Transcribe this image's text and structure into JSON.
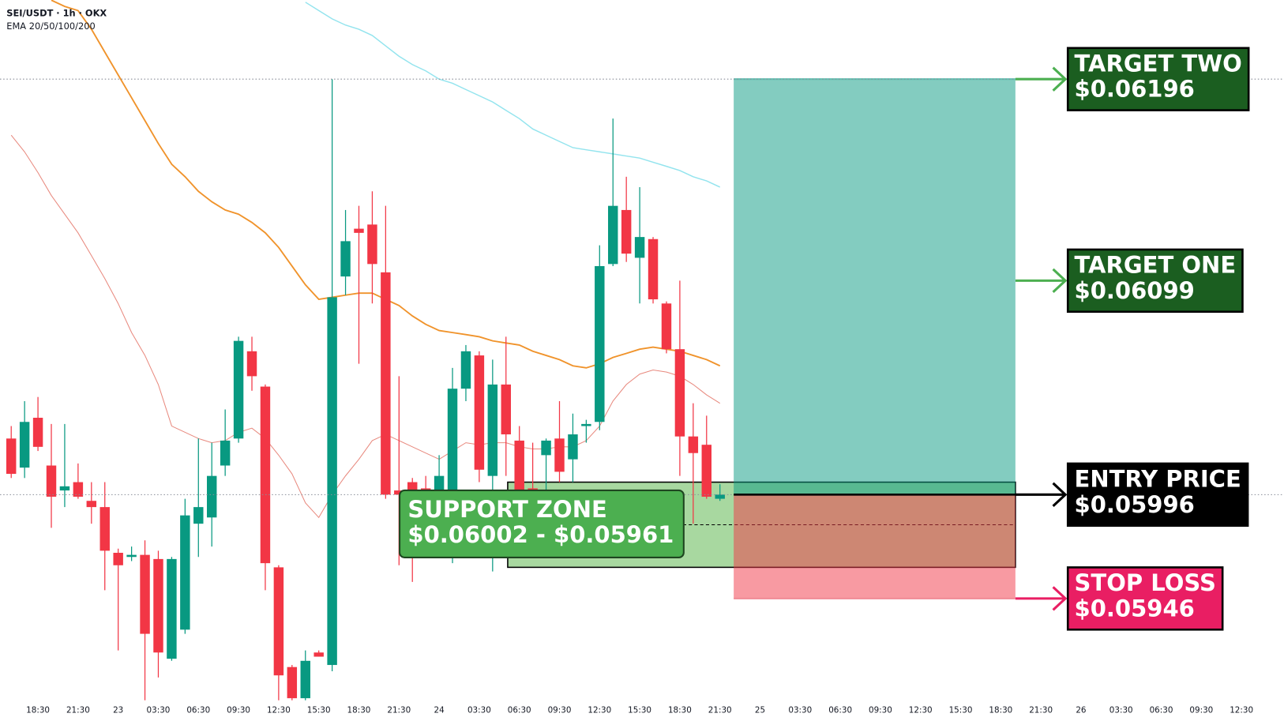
{
  "chart_data": {
    "type": "candlestick",
    "title": "SEI/USDT · 1h · OKX",
    "subtitle": "EMA 20/50/100/200",
    "categories": [
      null,
      null,
      "18:30",
      null,
      null,
      "21:30",
      null,
      null,
      "23",
      null,
      null,
      "03:30",
      null,
      null,
      "06:30",
      null,
      null,
      "09:30",
      null,
      null,
      "12:30",
      null,
      null,
      "15:30",
      null,
      null,
      "18:30",
      null,
      null,
      "21:30",
      null,
      null,
      "24",
      null,
      null,
      "03:30",
      null,
      null,
      "06:30",
      null,
      null,
      "09:30",
      null,
      null,
      "12:30",
      null,
      null,
      "15:30",
      null,
      null,
      "18:30",
      null,
      null,
      "21:30",
      null,
      null,
      "25",
      null,
      null,
      "03:30",
      null,
      null,
      "06:30",
      null,
      null,
      "09:30",
      null,
      null,
      "12:30",
      null,
      null,
      "15:30",
      null,
      null,
      "18:30",
      null,
      null,
      "21:30",
      null,
      null,
      "26",
      null,
      null,
      "03:30",
      null,
      null,
      "06:30",
      null,
      null,
      "09:30",
      null,
      null,
      "12:30"
    ],
    "open": [
      0.06023,
      0.06009,
      0.06033,
      0.0601,
      0.05998,
      0.06002,
      0.05993,
      0.0599,
      0.05968,
      0.05966,
      0.05967,
      0.05965,
      0.05917,
      0.05931,
      0.05982,
      0.05985,
      0.0601,
      0.06023,
      0.06065,
      0.06048,
      0.05961,
      0.05913,
      0.05898,
      0.0592,
      0.05914,
      0.06101,
      0.06124,
      0.06126,
      0.06103,
      0.05998,
      0.06002,
      0.05999,
      0.05998,
      0.05998,
      0.06047,
      0.06063,
      0.06005,
      0.06049,
      0.06022,
      0.05999,
      0.06015,
      0.06023,
      0.06013,
      0.06029,
      0.06031,
      0.06107,
      0.06133,
      0.0611,
      0.06119,
      0.06088,
      0.06066,
      0.06024,
      0.0602,
      0.05994,
      null,
      null,
      null,
      null,
      null,
      null,
      null,
      null,
      null,
      null,
      null,
      null,
      null,
      null,
      null,
      null,
      null,
      null,
      null,
      null,
      null,
      null,
      null,
      null,
      null,
      null,
      null,
      null,
      null,
      null,
      null,
      null,
      null,
      null,
      null,
      null,
      null,
      null,
      null
    ],
    "high": [
      0.06029,
      0.06041,
      0.06043,
      0.0603,
      0.0603,
      0.06011,
      0.06002,
      0.06002,
      0.0597,
      0.05971,
      0.05974,
      0.05969,
      0.05966,
      0.05994,
      0.06023,
      0.06021,
      0.06037,
      0.06072,
      0.06072,
      0.06049,
      0.05962,
      0.05914,
      0.05921,
      0.05921,
      0.06196,
      0.06133,
      0.06135,
      0.06142,
      0.06135,
      0.06053,
      0.06004,
      0.06005,
      0.06015,
      0.06057,
      0.06068,
      0.06065,
      0.06061,
      0.06072,
      0.06029,
      0.06021,
      0.06023,
      0.06041,
      0.06035,
      0.06032,
      0.06116,
      0.06177,
      0.06149,
      0.06144,
      0.0612,
      0.06089,
      0.06099,
      0.0604,
      0.06034,
      0.06001,
      null,
      null,
      null,
      null,
      null,
      null,
      null,
      null,
      null,
      null,
      null,
      null,
      null,
      null,
      null,
      null,
      null,
      null,
      null,
      null,
      null,
      null,
      null,
      null,
      null,
      null,
      null,
      null,
      null,
      null,
      null,
      null,
      null,
      null,
      null,
      null,
      null,
      null,
      null
    ],
    "low": [
      0.06004,
      0.06004,
      0.06017,
      0.0598,
      0.0599,
      0.05994,
      0.05982,
      0.0595,
      0.05921,
      0.05964,
      0.05897,
      0.05908,
      0.05916,
      0.05929,
      0.05966,
      0.05971,
      0.06005,
      0.06021,
      0.06046,
      0.0595,
      0.05897,
      0.05897,
      0.05897,
      0.05918,
      0.05911,
      0.06092,
      0.06059,
      0.06088,
      0.05994,
      0.05962,
      0.05954,
      0.05994,
      0.05988,
      0.05963,
      0.06041,
      0.06002,
      0.05959,
      0.06005,
      0.0599,
      0.05996,
      0.05998,
      0.06002,
      0.06002,
      0.06021,
      0.06027,
      0.06106,
      0.06108,
      0.06088,
      0.06088,
      0.06064,
      0.06005,
      0.05982,
      0.05994,
      0.05993,
      null,
      null,
      null,
      null,
      null,
      null,
      null,
      null,
      null,
      null,
      null,
      null,
      null,
      null,
      null,
      null,
      null,
      null,
      null,
      null,
      null,
      null,
      null,
      null,
      null,
      null,
      null,
      null,
      null,
      null,
      null,
      null,
      null,
      null,
      null,
      null,
      null,
      null,
      null
    ],
    "close": [
      0.06006,
      0.06031,
      0.06019,
      0.05995,
      0.06,
      0.05995,
      0.0599,
      0.05969,
      0.05962,
      0.05967,
      0.05929,
      0.0592,
      0.05965,
      0.05986,
      0.0599,
      0.06005,
      0.06022,
      0.0607,
      0.06053,
      0.05963,
      0.05909,
      0.05898,
      0.05916,
      0.05918,
      0.06091,
      0.06118,
      0.06122,
      0.06107,
      0.05996,
      0.05996,
      0.05998,
      0.05997,
      0.06005,
      0.06047,
      0.06065,
      0.06008,
      0.06049,
      0.06025,
      0.05998,
      0.05998,
      0.06022,
      0.06007,
      0.06025,
      0.0603,
      0.06106,
      0.06135,
      0.06112,
      0.0612,
      0.0609,
      0.06066,
      0.06024,
      0.06016,
      0.05995,
      0.05996,
      null,
      null,
      null,
      null,
      null,
      null,
      null,
      null,
      null,
      null,
      null,
      null,
      null,
      null,
      null,
      null,
      null,
      null,
      null,
      null,
      null,
      null,
      null,
      null,
      null,
      null,
      null,
      null,
      null,
      null,
      null,
      null,
      null,
      null,
      null,
      null,
      null,
      null,
      null
    ],
    "up_color": "#089981",
    "down_color": "#f23645",
    "ylim": [
      0.05895,
      0.06234
    ],
    "lines": [
      {
        "color": "#f0932b",
        "width": 1.8,
        "values": [
          null,
          null,
          null,
          0.06234,
          0.06231,
          0.06229,
          0.0622,
          0.06209,
          0.06198,
          0.06187,
          0.06176,
          0.06165,
          0.06155,
          0.06149,
          0.06142,
          0.06137,
          0.06133,
          0.06131,
          0.06127,
          0.06122,
          0.06115,
          0.06106,
          0.06097,
          0.0609,
          0.06091,
          0.06092,
          0.06093,
          0.06093,
          0.0609,
          0.06087,
          0.06082,
          0.06078,
          0.06075,
          0.06074,
          0.06073,
          0.06072,
          0.0607,
          0.06069,
          0.06068,
          0.06065,
          0.06063,
          0.06061,
          0.06058,
          0.06057,
          0.06059,
          0.06062,
          0.06064,
          0.06066,
          0.06067,
          0.06066,
          0.06065,
          0.06063,
          0.06061,
          0.06058,
          null,
          null,
          null,
          null,
          null,
          null,
          null,
          null,
          null,
          null,
          null,
          null,
          null,
          null,
          null,
          null,
          null,
          null,
          null,
          null,
          null,
          null,
          null,
          null,
          null,
          null,
          null,
          null,
          null,
          null,
          null,
          null,
          null,
          null,
          null,
          null,
          null,
          null,
          null
        ]
      },
      {
        "color": "#e8897e",
        "width": 1,
        "values": [
          0.06169,
          0.06161,
          0.06151,
          0.0614,
          0.06131,
          0.06122,
          0.06111,
          0.061,
          0.06088,
          0.06074,
          0.06063,
          0.06049,
          0.06029,
          0.06026,
          0.06023,
          0.06021,
          0.06022,
          0.06026,
          0.06028,
          0.06023,
          0.06015,
          0.06006,
          0.05992,
          0.05985,
          0.05996,
          0.06005,
          0.06013,
          0.06022,
          0.06025,
          0.06022,
          0.06019,
          0.06016,
          0.06013,
          0.06017,
          0.06021,
          0.0602,
          0.06021,
          0.06021,
          0.06019,
          0.06018,
          0.06018,
          0.06019,
          0.06019,
          0.06022,
          0.06029,
          0.06041,
          0.06049,
          0.06054,
          0.06056,
          0.06055,
          0.06053,
          0.06049,
          0.06044,
          0.0604,
          null,
          null,
          null,
          null,
          null,
          null,
          null,
          null,
          null,
          null,
          null,
          null,
          null,
          null,
          null,
          null,
          null,
          null,
          null,
          null,
          null,
          null,
          null,
          null,
          null,
          null,
          null,
          null,
          null,
          null,
          null,
          null,
          null,
          null,
          null,
          null,
          null,
          null,
          null
        ]
      },
      {
        "color": "#93e4ee",
        "width": 1.4,
        "values": [
          null,
          null,
          null,
          null,
          null,
          null,
          null,
          null,
          null,
          null,
          null,
          null,
          null,
          null,
          null,
          null,
          null,
          null,
          null,
          null,
          null,
          null,
          0.06233,
          0.06229,
          0.06225,
          0.06222,
          0.0622,
          0.06217,
          0.06212,
          0.06207,
          0.06203,
          0.062,
          0.06196,
          0.06194,
          0.06191,
          0.06188,
          0.06185,
          0.06181,
          0.06177,
          0.06172,
          0.06169,
          0.06166,
          0.06163,
          0.06162,
          0.06161,
          0.0616,
          0.06159,
          0.06158,
          0.06156,
          0.06154,
          0.06152,
          0.06149,
          0.06147,
          0.06144,
          null,
          null,
          null,
          null,
          null,
          null,
          null,
          null,
          null,
          null,
          null,
          null,
          null,
          null,
          null,
          null,
          null,
          null,
          null,
          null,
          null,
          null,
          null,
          null,
          null,
          null,
          null,
          null,
          null,
          null,
          null,
          null,
          null,
          null,
          null,
          null,
          null,
          null,
          null
        ]
      }
    ],
    "support_zone": {
      "label": "SUPPORT ZONE",
      "values": [
        0.06002,
        0.05961
      ],
      "value_label": "$0.06002 - $0.05961",
      "color": "#4caf50",
      "fill": "#a8d8a0"
    },
    "levels": [
      {
        "label": "TARGET TWO",
        "value": 0.06196,
        "value_label": "$0.06196",
        "color": "#1b5e20",
        "arrow_color": "#4caf50"
      },
      {
        "label": "TARGET ONE",
        "value": 0.06099,
        "value_label": "$0.06099",
        "color": "#1b5e20",
        "arrow_color": "#4caf50"
      },
      {
        "label": "ENTRY PRICE",
        "value": 0.05996,
        "value_label": "$0.05996",
        "color": "#000000",
        "arrow_color": "#000000"
      },
      {
        "label": "STOP LOSS",
        "value": 0.05946,
        "value_label": "$0.05946",
        "color": "#e91e63",
        "arrow_color": "#e91e63"
      }
    ]
  }
}
